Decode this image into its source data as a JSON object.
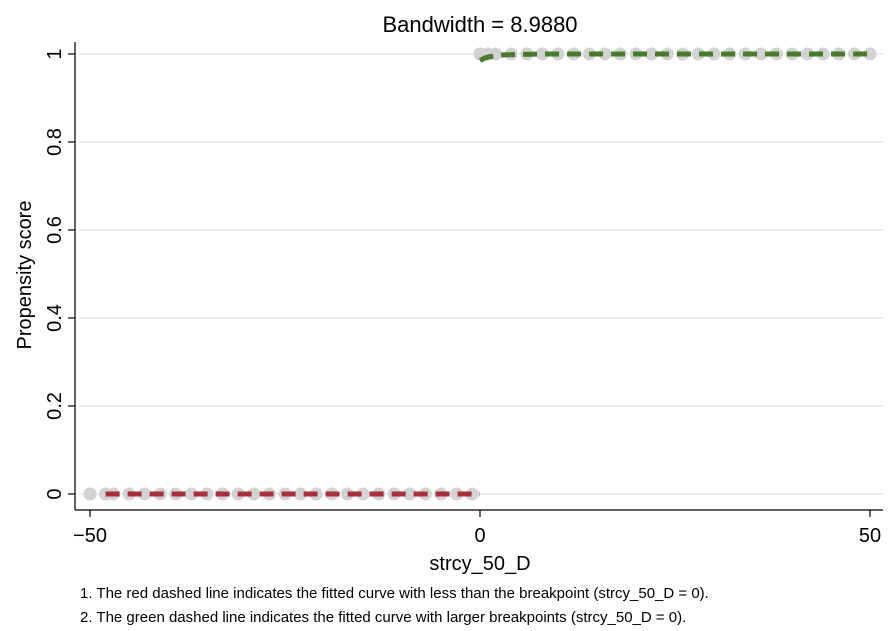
{
  "chart_data": {
    "type": "line",
    "title": "Bandwidth = 8.9880",
    "xlabel": "strcy_50_D",
    "ylabel": "Propensity score",
    "xlim": [
      -50,
      50
    ],
    "ylim": [
      0,
      1
    ],
    "xticks": [
      -50,
      0,
      50
    ],
    "xtick_labels": [
      "−50",
      "0",
      "50"
    ],
    "yticks": [
      0,
      0.2,
      0.4,
      0.6,
      0.8,
      1
    ],
    "ytick_labels": [
      "0",
      "0.2",
      "0.4",
      "0.6",
      "0.8",
      "1"
    ],
    "grid": true,
    "colors": {
      "scatter": "#d3d3d3",
      "fit_left": "#a8303a",
      "fit_right": "#4a7a2c",
      "grid": "#e3ece8"
    },
    "series": [
      {
        "kind": "scatter",
        "points": [
          [
            -50,
            0
          ],
          [
            -48,
            0
          ],
          [
            -47,
            0
          ],
          [
            -45,
            0
          ],
          [
            -43,
            0
          ],
          [
            -41,
            0
          ],
          [
            -39,
            0
          ],
          [
            -37,
            0
          ],
          [
            -35,
            0
          ],
          [
            -33,
            0
          ],
          [
            -31,
            0
          ],
          [
            -29,
            0
          ],
          [
            -27,
            0
          ],
          [
            -25,
            0
          ],
          [
            -23,
            0
          ],
          [
            -21,
            0
          ],
          [
            -19,
            0
          ],
          [
            -17,
            0
          ],
          [
            -15,
            0
          ],
          [
            -13,
            0
          ],
          [
            -11,
            0
          ],
          [
            -9,
            0
          ],
          [
            -7,
            0
          ],
          [
            -5,
            0
          ],
          [
            -3,
            0
          ],
          [
            -1,
            0
          ],
          [
            0,
            1
          ],
          [
            1,
            1
          ],
          [
            2,
            1
          ],
          [
            4,
            1
          ],
          [
            6,
            1
          ],
          [
            8,
            1
          ],
          [
            10,
            1
          ],
          [
            12,
            1
          ],
          [
            14,
            1
          ],
          [
            16,
            1
          ],
          [
            18,
            1
          ],
          [
            20,
            1
          ],
          [
            22,
            1
          ],
          [
            24,
            1
          ],
          [
            26,
            1
          ],
          [
            28,
            1
          ],
          [
            30,
            1
          ],
          [
            32,
            1
          ],
          [
            34,
            1
          ],
          [
            36,
            1
          ],
          [
            38,
            1
          ],
          [
            40,
            1
          ],
          [
            42,
            1
          ],
          [
            44,
            1
          ],
          [
            46,
            1
          ],
          [
            48,
            1
          ],
          [
            50,
            1
          ]
        ]
      },
      {
        "kind": "fit",
        "side": "left",
        "x": [
          -48,
          -40,
          -30,
          -20,
          -10,
          -5,
          0
        ],
        "y": [
          0,
          0,
          0,
          0,
          0,
          0,
          0
        ]
      },
      {
        "kind": "fit",
        "side": "right",
        "x": [
          0,
          0.5,
          1,
          2,
          3,
          5,
          8,
          15,
          30,
          50
        ],
        "y": [
          0.985,
          0.99,
          0.993,
          0.996,
          0.998,
          0.999,
          1.0,
          1.0,
          1.0,
          1.0
        ]
      }
    ]
  },
  "notes": [
    "1. The red dashed line indicates the fitted curve with less than the breakpoint (strcy_50_D = 0).",
    "2. The green dashed line indicates the fitted curve with larger breakpoints (strcy_50_D = 0)."
  ]
}
